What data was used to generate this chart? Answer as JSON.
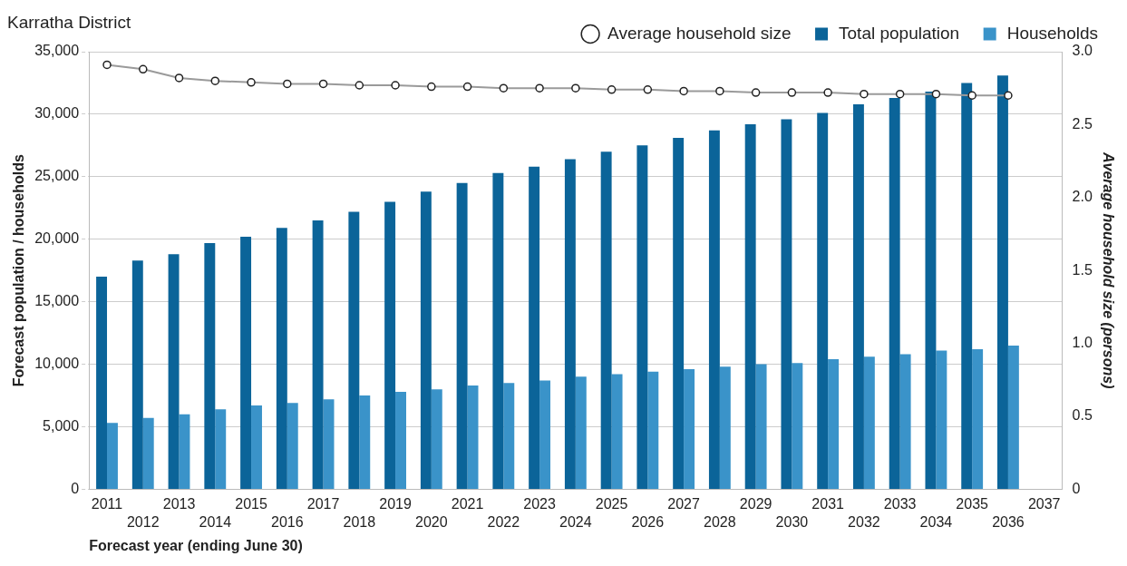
{
  "chart_data": {
    "type": "bar",
    "title": "Karratha District",
    "xlabel": "Forecast year (ending June 30)",
    "ylabel": "Forecast population / households",
    "y2label": "Average household size (persons)",
    "categories": [
      "2011",
      "2012",
      "2013",
      "2014",
      "2015",
      "2016",
      "2017",
      "2018",
      "2019",
      "2020",
      "2021",
      "2022",
      "2023",
      "2024",
      "2025",
      "2026",
      "2027",
      "2028",
      "2029",
      "2030",
      "2031",
      "2032",
      "2033",
      "2034",
      "2035",
      "2036",
      "2037"
    ],
    "series": [
      {
        "name": "Total population",
        "color": "#0b6499",
        "values": [
          17000,
          18300,
          18800,
          19700,
          20200,
          20900,
          21500,
          22200,
          23000,
          23800,
          24500,
          25300,
          25800,
          26400,
          27000,
          27500,
          28100,
          28700,
          29200,
          29600,
          30100,
          30800,
          31300,
          31800,
          32500,
          33100,
          null
        ]
      },
      {
        "name": "Households",
        "color": "#3a93c9",
        "values": [
          5300,
          5700,
          6000,
          6400,
          6700,
          6900,
          7200,
          7500,
          7800,
          8000,
          8300,
          8500,
          8700,
          9000,
          9200,
          9400,
          9600,
          9800,
          10000,
          10100,
          10400,
          10600,
          10800,
          11100,
          11200,
          11500,
          null
        ]
      },
      {
        "name": "Average household size",
        "type": "line",
        "axis": "y2",
        "color": "#9a9a9a",
        "values": [
          2.91,
          2.88,
          2.82,
          2.8,
          2.79,
          2.78,
          2.78,
          2.77,
          2.77,
          2.76,
          2.76,
          2.75,
          2.75,
          2.75,
          2.74,
          2.74,
          2.73,
          2.73,
          2.72,
          2.72,
          2.72,
          2.71,
          2.71,
          2.71,
          2.7,
          2.7,
          null
        ]
      }
    ],
    "ylim": [
      0,
      35000
    ],
    "yticks": [
      {
        "value": 0,
        "label": "0"
      },
      {
        "value": 5000,
        "label": "5,000"
      },
      {
        "value": 10000,
        "label": "10,000"
      },
      {
        "value": 15000,
        "label": "15,000"
      },
      {
        "value": 20000,
        "label": "20,000"
      },
      {
        "value": 25000,
        "label": "25,000"
      },
      {
        "value": 30000,
        "label": "30,000"
      },
      {
        "value": 35000,
        "label": "35,000"
      }
    ],
    "y2lim": [
      0,
      3
    ],
    "y2ticks": [
      0,
      {
        "value": 0.5,
        "label": "0.5"
      },
      {
        "value": 1,
        "label": "1.0"
      },
      {
        "value": 1.5,
        "label": "1.5"
      },
      {
        "value": 2,
        "label": "2.0"
      },
      {
        "value": 2.5,
        "label": "2.5"
      },
      {
        "value": 3,
        "label": "3.0"
      }
    ],
    "grid": "y",
    "legend": "top right",
    "marker": "circle"
  }
}
